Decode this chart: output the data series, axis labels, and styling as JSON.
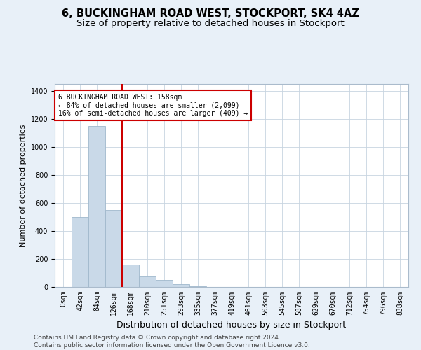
{
  "title1": "6, BUCKINGHAM ROAD WEST, STOCKPORT, SK4 4AZ",
  "title2": "Size of property relative to detached houses in Stockport",
  "xlabel": "Distribution of detached houses by size in Stockport",
  "ylabel": "Number of detached properties",
  "categories": [
    "0sqm",
    "42sqm",
    "84sqm",
    "126sqm",
    "168sqm",
    "210sqm",
    "251sqm",
    "293sqm",
    "335sqm",
    "377sqm",
    "419sqm",
    "461sqm",
    "503sqm",
    "545sqm",
    "587sqm",
    "629sqm",
    "670sqm",
    "712sqm",
    "754sqm",
    "796sqm",
    "838sqm"
  ],
  "values": [
    0,
    500,
    1150,
    550,
    160,
    75,
    50,
    20,
    5,
    0,
    0,
    0,
    0,
    0,
    0,
    0,
    0,
    0,
    0,
    0,
    0
  ],
  "bar_color": "#c9d9e8",
  "bar_edge_color": "#a0b8cc",
  "vline_x": 4,
  "vline_color": "#cc0000",
  "annotation_text": "6 BUCKINGHAM ROAD WEST: 158sqm\n← 84% of detached houses are smaller (2,099)\n16% of semi-detached houses are larger (409) →",
  "annotation_box_color": "#ffffff",
  "annotation_box_edge": "#cc0000",
  "ylim": [
    0,
    1450
  ],
  "yticks": [
    0,
    200,
    400,
    600,
    800,
    1000,
    1200,
    1400
  ],
  "footnote": "Contains HM Land Registry data © Crown copyright and database right 2024.\nContains public sector information licensed under the Open Government Licence v3.0.",
  "bg_color": "#e8f0f8",
  "plot_bg_color": "#ffffff",
  "title_fontsize": 10.5,
  "subtitle_fontsize": 9.5,
  "tick_fontsize": 7,
  "footnote_fontsize": 6.5,
  "ylabel_fontsize": 8,
  "xlabel_fontsize": 9
}
